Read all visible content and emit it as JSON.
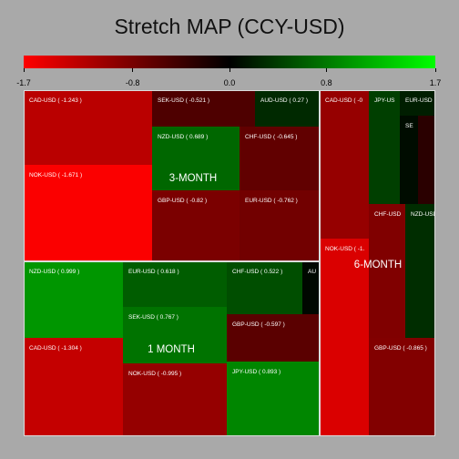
{
  "chart_data": {
    "type": "treemap",
    "title": "Stretch MAP (CCY-USD)",
    "color_scale": {
      "min": -1.7,
      "max": 1.7,
      "ticks": [
        "-1.7",
        "-0.8",
        "0.0",
        "0.8",
        "1.7"
      ],
      "tick_values": [
        -1.7,
        -0.8,
        0.0,
        0.8,
        1.7
      ],
      "colors": {
        "negative": "#ff0000",
        "zero": "#000000",
        "positive": "#00ff00"
      }
    },
    "groups": [
      {
        "name": "3-MONTH",
        "tiles": [
          {
            "label": "CAD-USD ( -1.243 )",
            "value": -1.243
          },
          {
            "label": "SEK-USD ( -0.521 )",
            "value": -0.521
          },
          {
            "label": "AUD-USD ( 0.27 )",
            "value": 0.27
          },
          {
            "label": "NZD-USD ( 0.689 )",
            "value": 0.689
          },
          {
            "label": "CHF-USD ( -0.645 )",
            "value": -0.645
          },
          {
            "label": "NOK-USD ( -1.671 )",
            "value": -1.671
          },
          {
            "label": "GBP-USD ( -0.82 )",
            "value": -0.82
          },
          {
            "label": "EUR-USD ( -0.762 )",
            "value": -0.762
          }
        ]
      },
      {
        "name": "1 MONTH",
        "tiles": [
          {
            "label": "NZD-USD ( 0.999 )",
            "value": 0.999
          },
          {
            "label": "EUR-USD ( 0.618 )",
            "value": 0.618
          },
          {
            "label": "CHF-USD ( 0.522 )",
            "value": 0.522
          },
          {
            "label": "AU",
            "value": 0.05
          },
          {
            "label": "SEK-USD ( 0.767 )",
            "value": 0.767
          },
          {
            "label": "GBP-USD ( -0.597 )",
            "value": -0.597
          },
          {
            "label": "CAD-USD ( -1.304 )",
            "value": -1.304
          },
          {
            "label": "NOK-USD ( -0.995 )",
            "value": -0.995
          },
          {
            "label": "JPY-USD ( 0.893 )",
            "value": 0.893
          }
        ]
      },
      {
        "name": "6-MONTH",
        "tiles": [
          {
            "label": "CAD-USD ( -0",
            "value": -1.0
          },
          {
            "label": "JPY-US",
            "value": 0.42
          },
          {
            "label": "EUR-USD",
            "value": 0.2
          },
          {
            "label": "SE",
            "value": 0.08
          },
          {
            "label": "",
            "value": -0.28
          },
          {
            "label": "CHF-USD",
            "value": -0.85
          },
          {
            "label": "NZD-USD",
            "value": 0.3
          },
          {
            "label": "NOK-USD ( -1.",
            "value": -1.45
          },
          {
            "label": "GBP-USD ( -0.865 )",
            "value": -0.865
          }
        ]
      }
    ]
  }
}
